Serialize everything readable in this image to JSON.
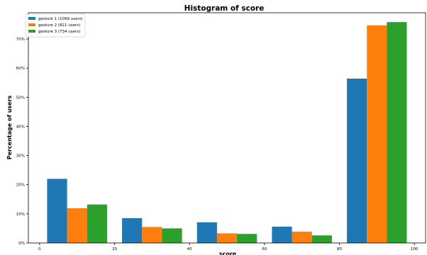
{
  "chart_data": {
    "type": "bar",
    "title": "Histogram of score",
    "xlabel": "score",
    "ylabel": "Percentage of users",
    "xlim": [
      -3,
      103
    ],
    "ylim": [
      0,
      0.79
    ],
    "x_ticks": [
      0,
      20,
      40,
      60,
      80,
      100
    ],
    "x_tick_labels": [
      "0",
      "20",
      "40",
      "60",
      "80",
      "100"
    ],
    "y_ticks": [
      0,
      0.1,
      0.2,
      0.3,
      0.4,
      0.5,
      0.6,
      0.7
    ],
    "y_tick_labels": [
      "0%",
      "10%",
      "20%",
      "30%",
      "40%",
      "50%",
      "60%",
      "70%"
    ],
    "bin_edges": [
      0,
      20,
      40,
      60,
      80,
      100
    ],
    "legend_position": "top-left",
    "grid": false,
    "series": [
      {
        "name": "gesture 1 (1099 users)",
        "color": "#1f77b4",
        "values": [
          0.22,
          0.085,
          0.071,
          0.056,
          0.564
        ]
      },
      {
        "name": "gesture 2 (821 users)",
        "color": "#ff7f0e",
        "values": [
          0.119,
          0.055,
          0.033,
          0.039,
          0.747
        ]
      },
      {
        "name": "gesture 3 (734 users)",
        "color": "#2ca02c",
        "values": [
          0.132,
          0.05,
          0.031,
          0.026,
          0.758
        ]
      }
    ]
  }
}
